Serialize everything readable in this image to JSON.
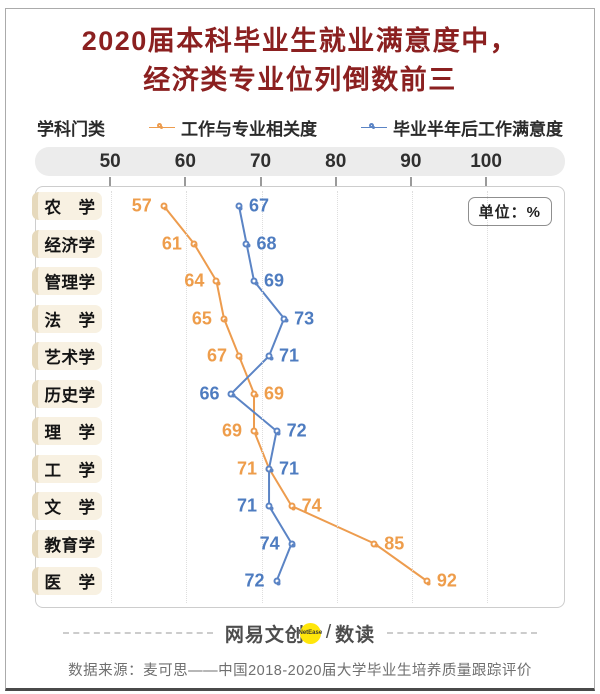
{
  "title": {
    "line1": "2020届本科毕业生就业满意度中，",
    "line2": "经济类专业位列倒数前三"
  },
  "legend": {
    "category_label": "学科门类",
    "series": [
      {
        "label": "工作与专业相关度",
        "color": "#ed9c4e"
      },
      {
        "label": "毕业半年后工作满意度",
        "color": "#5b84c5"
      }
    ]
  },
  "unit_badge": "单位：%",
  "chart_data": {
    "type": "line",
    "orientation": "horizontal-dot-plot",
    "categories": [
      "农　学",
      "经济学",
      "管理学",
      "法　学",
      "艺术学",
      "历史学",
      "理　学",
      "工　学",
      "文　学",
      "教育学",
      "医　学"
    ],
    "series": [
      {
        "name": "工作与专业相关度",
        "color": "#ed9c4e",
        "label_color": "#ee9d4b",
        "values": [
          57,
          61,
          64,
          65,
          67,
          69,
          69,
          71,
          74,
          85,
          92
        ]
      },
      {
        "name": "毕业半年后工作满意度",
        "color": "#5b84c5",
        "label_color": "#4e7cc0",
        "values": [
          67,
          68,
          69,
          73,
          71,
          66,
          72,
          71,
          71,
          74,
          72
        ]
      }
    ],
    "x_ticks": [
      50,
      60,
      70,
      80,
      90,
      100
    ],
    "x_range": [
      40,
      110.5
    ],
    "unit": "%",
    "grid": "dotted-vertical"
  },
  "footer": {
    "brand_left": "网易文创",
    "brand_badge": "NetEase",
    "separator": "/",
    "brand_right": "数读",
    "source": "数据来源：麦可思——中国2018-2020届大学毕业生培养质量跟踪评价"
  }
}
